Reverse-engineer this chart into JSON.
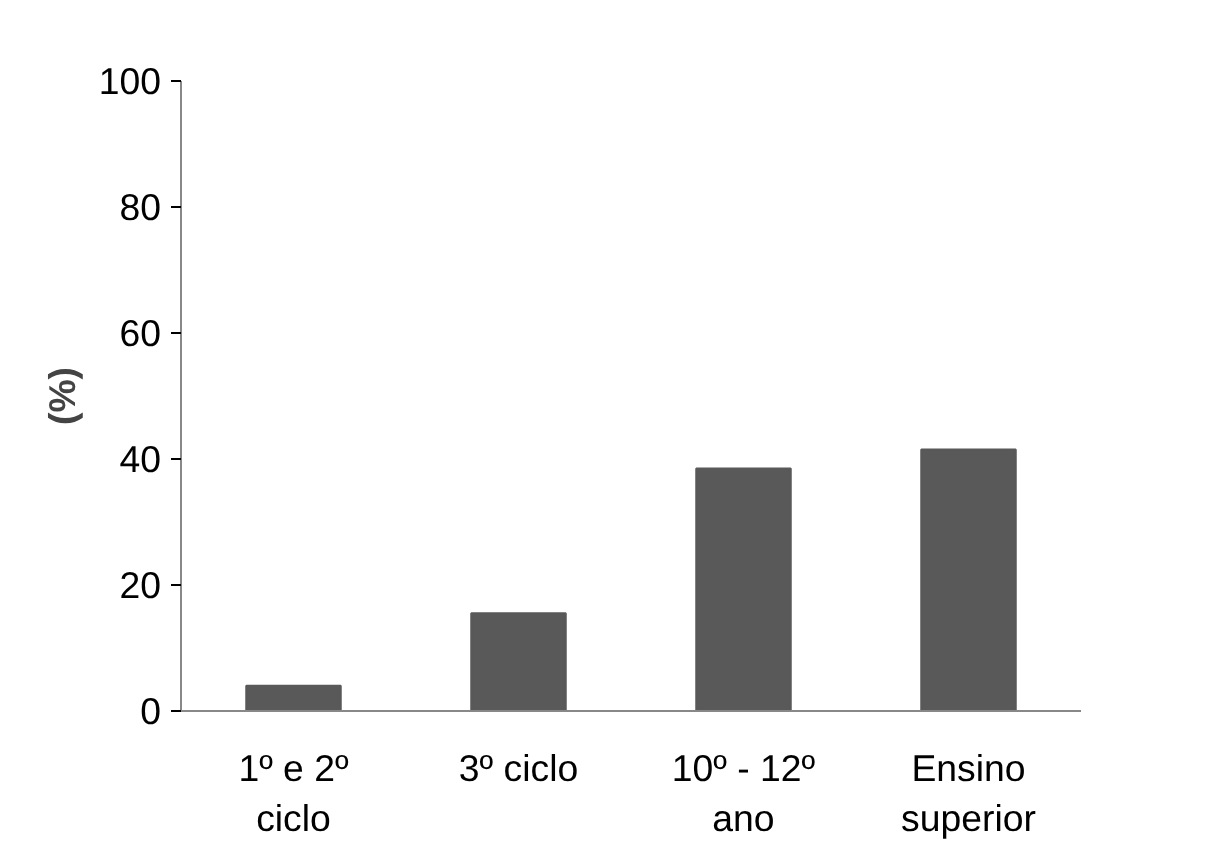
{
  "chart_data": {
    "type": "bar",
    "ylabel": "(%)",
    "categories": [
      "1º e 2º ciclo",
      "3º ciclo",
      "10º - 12º ano",
      "Ensino superior"
    ],
    "values": [
      4,
      15.5,
      38.5,
      41.5
    ],
    "color": "#595959",
    "ylim": [
      0,
      100
    ],
    "yticks": [
      0,
      20,
      40,
      60,
      80,
      100
    ],
    "grid": false
  }
}
